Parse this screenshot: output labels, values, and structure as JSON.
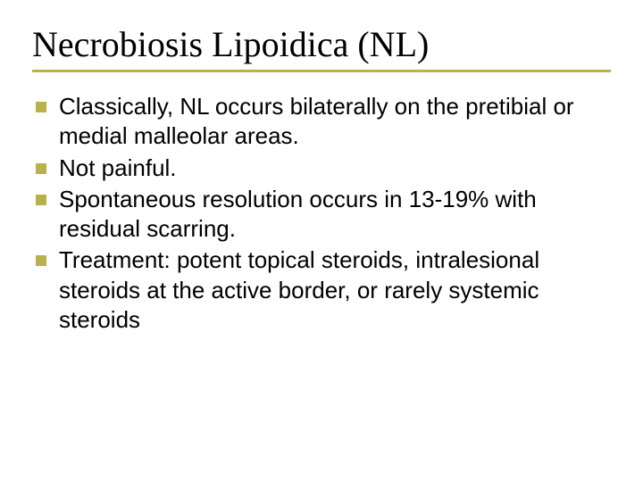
{
  "title": "Necrobiosis Lipoidica (NL)",
  "accent_color": "#b7b24a",
  "background_color": "#ffffff",
  "title_font": "Times New Roman",
  "title_fontsize": 40,
  "body_font": "Verdana",
  "body_fontsize": 26,
  "bullets": [
    "Classically, NL occurs bilaterally on the pretibial or medial malleolar areas.",
    "Not painful.",
    "Spontaneous resolution occurs in 13-19% with residual scarring.",
    "Treatment: potent topical steroids, intralesional steroids at the active border, or rarely systemic steroids"
  ]
}
